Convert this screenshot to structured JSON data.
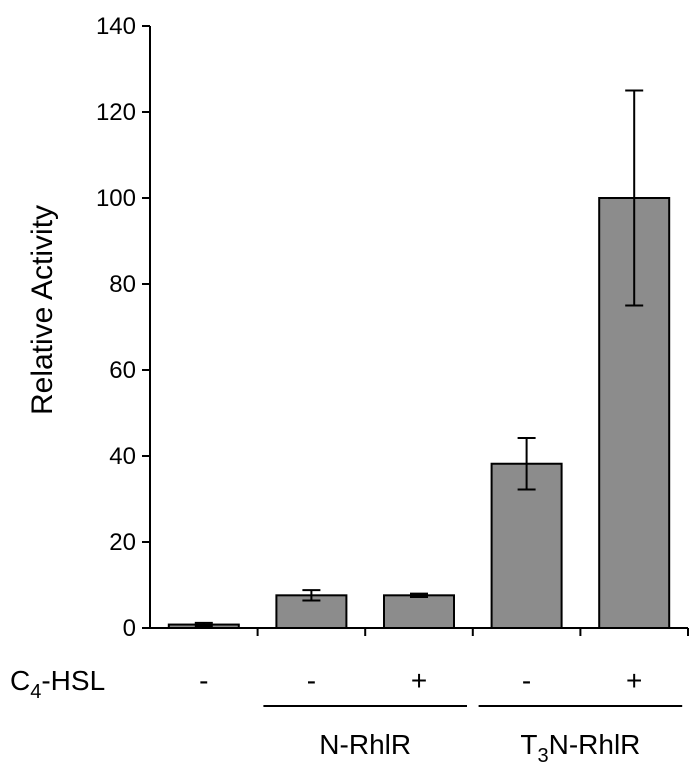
{
  "chart_data": {
    "type": "bar",
    "title": "",
    "xlabel": "",
    "ylabel": "Relative Activity",
    "ylim": [
      0,
      140
    ],
    "yticks": [
      "0",
      "20",
      "40",
      "60",
      "80",
      "100",
      "120",
      "140"
    ],
    "ytick_values": [
      0,
      20,
      40,
      60,
      80,
      100,
      120,
      140
    ],
    "grid": false,
    "legend": "none",
    "bar_color": "#8c8c8c",
    "row_label": {
      "main": "C",
      "sub": "4",
      "rest": "-HSL"
    },
    "categories": [
      "-",
      "-",
      "+",
      "-",
      "+"
    ],
    "values": [
      0.8,
      7.6,
      7.6,
      38.2,
      100
    ],
    "errors": [
      0.4,
      1.2,
      0.4,
      6,
      25
    ],
    "groups": [
      {
        "label_main": "N-RhlR",
        "label_sub": "",
        "label_rest": "",
        "bars": [
          1,
          2
        ]
      },
      {
        "label_main": "T",
        "label_sub": "3",
        "label_rest": "N-RhlR",
        "bars": [
          3,
          4
        ]
      }
    ]
  }
}
